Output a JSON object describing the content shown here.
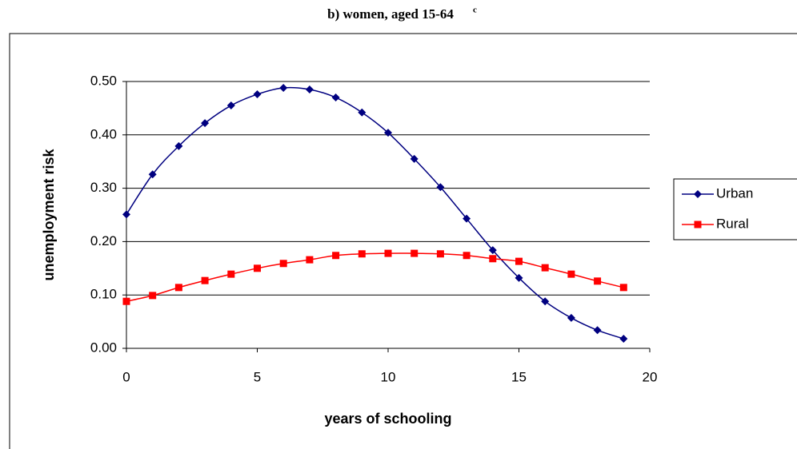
{
  "chart_data": {
    "type": "line",
    "title": "b) women, aged 15-64",
    "title_note": "c",
    "x_label": "years of schooling",
    "y_label": "unemployment risk",
    "x": [
      0,
      1,
      2,
      3,
      4,
      5,
      6,
      7,
      8,
      9,
      10,
      11,
      12,
      13,
      14,
      15,
      16,
      17,
      18,
      19
    ],
    "series": [
      {
        "name": "Urban",
        "color": "#000080",
        "marker": "diamond",
        "values": [
          0.251,
          0.326,
          0.379,
          0.422,
          0.455,
          0.476,
          0.488,
          0.485,
          0.47,
          0.442,
          0.404,
          0.355,
          0.302,
          0.243,
          0.184,
          0.132,
          0.088,
          0.057,
          0.034,
          0.018
        ]
      },
      {
        "name": "Rural",
        "color": "#ff0000",
        "marker": "square",
        "values": [
          0.088,
          0.099,
          0.114,
          0.127,
          0.139,
          0.15,
          0.159,
          0.166,
          0.174,
          0.177,
          0.178,
          0.178,
          0.177,
          0.174,
          0.168,
          0.163,
          0.151,
          0.139,
          0.126,
          0.114
        ]
      }
    ],
    "xlim": [
      0,
      20
    ],
    "xticks": [
      0,
      5,
      10,
      15,
      20
    ],
    "ylim": [
      0,
      0.5
    ],
    "yticks": [
      {
        "value": 0,
        "label": "0.00"
      },
      {
        "value": 0.1,
        "label": "0.10"
      },
      {
        "value": 0.2,
        "label": "0.20"
      },
      {
        "value": 0.3,
        "label": "0.30"
      },
      {
        "value": 0.4,
        "label": "0.40"
      },
      {
        "value": 0.5,
        "label": "0.50"
      }
    ],
    "grid": true,
    "legend": "right"
  }
}
